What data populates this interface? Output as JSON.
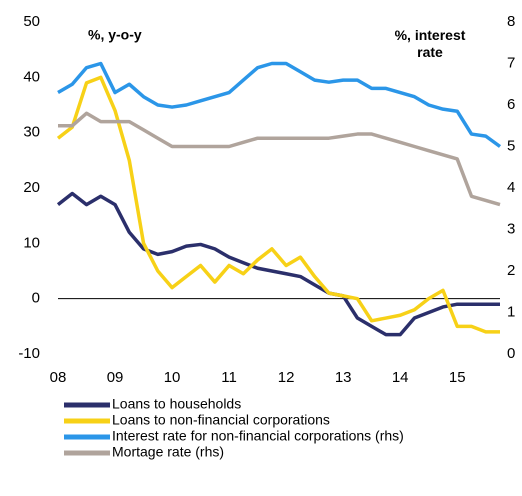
{
  "chart_data": {
    "type": "line",
    "y_label": "%, y-o-y",
    "y2_label": "%, interest rate",
    "x": [
      2008,
      2008.25,
      2008.5,
      2008.75,
      2009,
      2009.25,
      2009.5,
      2009.75,
      2010,
      2010.25,
      2010.5,
      2010.75,
      2011,
      2011.25,
      2011.5,
      2011.75,
      2012,
      2012.25,
      2012.5,
      2012.75,
      2013,
      2013.25,
      2013.5,
      2013.75,
      2014,
      2014.25,
      2014.5,
      2014.75,
      2015,
      2015.25,
      2015.5,
      2015.75
    ],
    "series": [
      {
        "name": "Loans to households",
        "color": "#2b2f6b",
        "values": [
          17,
          19,
          17,
          18.5,
          17,
          12,
          9,
          8,
          8.5,
          9.5,
          9.8,
          9,
          7.5,
          6.5,
          5.5,
          5,
          4.5,
          4,
          2.5,
          1,
          0.5,
          -3.5,
          -5,
          -6.5,
          -6.5,
          -3.5,
          -2.5,
          -1.5,
          -1,
          -1,
          -1,
          -1
        ]
      },
      {
        "name": "Loans to non-financial corporations",
        "color": "#f7d117",
        "values": [
          29,
          31,
          39,
          40,
          34,
          25,
          10,
          5,
          2,
          4,
          6,
          3,
          6,
          4.5,
          7,
          9,
          6,
          7.5,
          4,
          1,
          0.5,
          0,
          -4,
          -3.5,
          -3,
          -2,
          0,
          1.5,
          -5,
          -5,
          -6,
          -6
        ]
      },
      {
        "name": "Interest rate for non-financial corporations (rhs)",
        "color": "#2b96e8",
        "axis": "y2",
        "values": [
          6.3,
          6.5,
          6.9,
          7.0,
          6.3,
          6.5,
          6.2,
          6.0,
          5.95,
          6.0,
          6.1,
          6.2,
          6.3,
          6.6,
          6.9,
          7.0,
          7.0,
          6.8,
          6.6,
          6.55,
          6.6,
          6.6,
          6.4,
          6.4,
          6.3,
          6.2,
          6.0,
          5.9,
          5.85,
          5.3,
          5.25,
          5.0
        ]
      },
      {
        "name": "Mortage rate (rhs)",
        "color": "#b0a49c",
        "axis": "y2",
        "values": [
          5.5,
          5.5,
          5.8,
          5.6,
          5.6,
          5.6,
          5.4,
          5.2,
          5.0,
          5.0,
          5.0,
          5.0,
          5.0,
          5.1,
          5.2,
          5.2,
          5.2,
          5.2,
          5.2,
          5.2,
          5.25,
          5.3,
          5.3,
          5.2,
          5.1,
          5.0,
          4.9,
          4.8,
          4.7,
          3.8,
          3.7,
          3.6
        ]
      }
    ],
    "xlim": [
      2008,
      2015.75
    ],
    "xticks": [
      {
        "value": 2008,
        "label": "08"
      },
      {
        "value": 2009,
        "label": "09"
      },
      {
        "value": 2010,
        "label": "10"
      },
      {
        "value": 2011,
        "label": "11"
      },
      {
        "value": 2012,
        "label": "12"
      },
      {
        "value": 2013,
        "label": "13"
      },
      {
        "value": 2014,
        "label": "14"
      },
      {
        "value": 2015,
        "label": "15"
      }
    ],
    "ylim": [
      -10,
      50
    ],
    "yticks": [
      -10,
      0,
      10,
      20,
      30,
      40,
      50
    ],
    "y2lim": [
      0,
      8
    ],
    "y2ticks": [
      0,
      1,
      2,
      3,
      4,
      5,
      6,
      7,
      8
    ],
    "zero_line": true
  }
}
